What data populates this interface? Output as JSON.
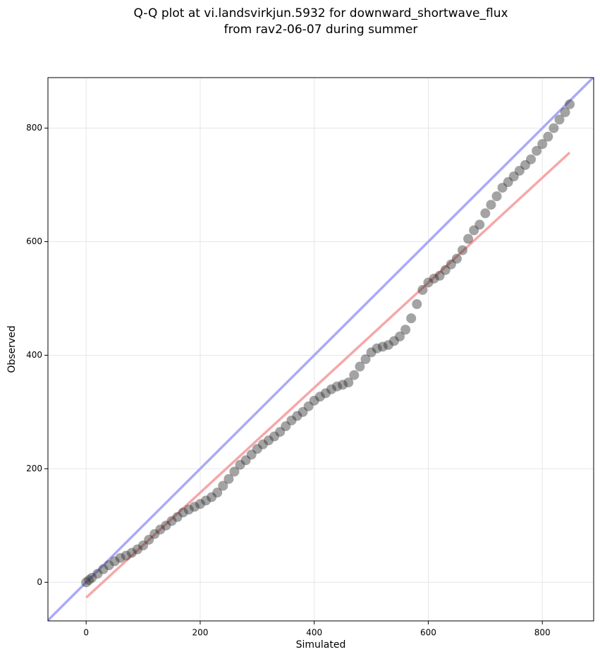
{
  "chart_data": {
    "type": "scatter",
    "title": [
      "Q-Q plot at vi.landsvirkjun.5932 for downward_shortwave_flux",
      "from rav2-06-07 during summer"
    ],
    "x_label": "Simulated",
    "y_label": "Observed",
    "xlim": [
      -67,
      890
    ],
    "ylim": [
      -68,
      889
    ],
    "xticks": [
      0,
      200,
      400,
      600,
      800
    ],
    "yticks": [
      0,
      200,
      400,
      600,
      800
    ],
    "grid": true,
    "series": [
      {
        "color": "#333333",
        "x": [
          0,
          5,
          10,
          20,
          30,
          40,
          50,
          60,
          70,
          80,
          90,
          100,
          110,
          120,
          130,
          140,
          150,
          160,
          170,
          180,
          190,
          200,
          210,
          220,
          230,
          240,
          250,
          260,
          270,
          280,
          290,
          300,
          310,
          320,
          330,
          340,
          350,
          360,
          370,
          380,
          390,
          400,
          410,
          420,
          430,
          440,
          450,
          460,
          470,
          480,
          490,
          500,
          510,
          520,
          530,
          540,
          550,
          560,
          570,
          580,
          590,
          600,
          610,
          620,
          630,
          640,
          650,
          660,
          670,
          680,
          690,
          700,
          710,
          720,
          730,
          740,
          750,
          760,
          770,
          780,
          790,
          800,
          810,
          820,
          830,
          840,
          848
        ],
        "values": [
          0,
          4,
          8,
          15,
          23,
          30,
          37,
          43,
          47,
          52,
          58,
          65,
          75,
          85,
          93,
          100,
          108,
          115,
          123,
          128,
          133,
          138,
          144,
          150,
          158,
          170,
          182,
          195,
          207,
          215,
          225,
          235,
          243,
          250,
          257,
          265,
          275,
          285,
          293,
          300,
          310,
          320,
          327,
          333,
          340,
          345,
          348,
          352,
          365,
          380,
          393,
          405,
          412,
          415,
          418,
          425,
          433,
          445,
          465,
          490,
          515,
          528,
          535,
          540,
          550,
          560,
          570,
          585,
          605,
          620,
          630,
          650,
          665,
          680,
          695,
          705,
          715,
          725,
          735,
          745,
          760,
          772,
          785,
          800,
          815,
          828,
          842
        ]
      }
    ],
    "lines": [
      {
        "color": "#aaaaf7",
        "x": [
          -67,
          890
        ],
        "values": [
          -67,
          890
        ]
      },
      {
        "color": "#f5a8a8",
        "x": [
          0,
          848
        ],
        "values": [
          -27,
          757
        ]
      }
    ]
  }
}
